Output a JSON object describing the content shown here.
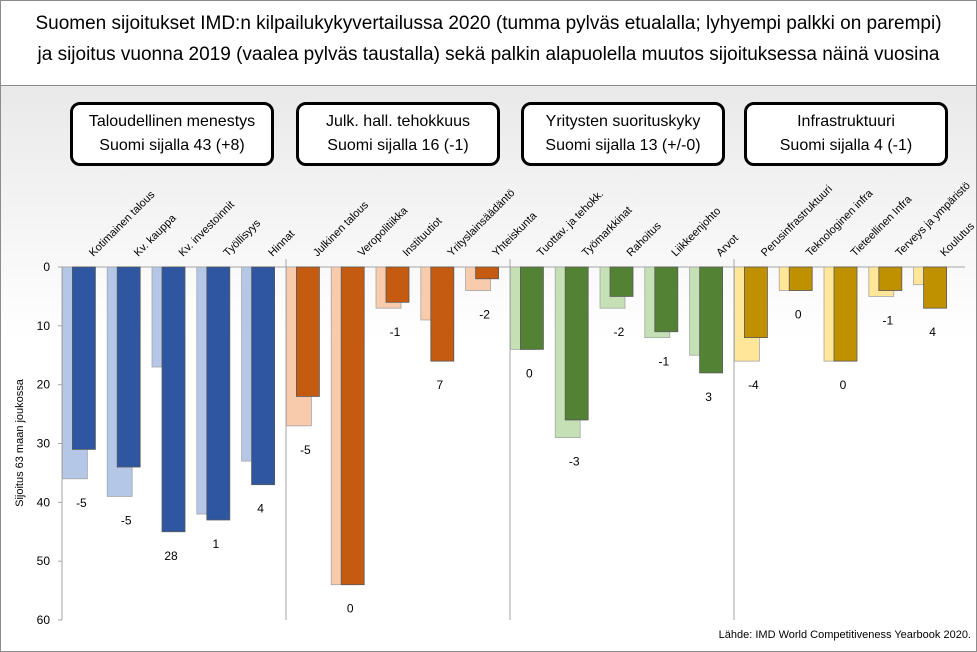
{
  "title": {
    "line1": "Suomen sijoitukset IMD:n kilpailukykyvertailussa 2020 (tumma pylväs etualalla; lyhyempi palkki on parempi)",
    "line2": "ja sijoitus vuonna 2019 (vaalea pylväs taustalla) sekä palkin alapuolella muutos sijoituksessa näinä vuosina"
  },
  "source": "Lähde: IMD World Competitiveness Yearbook 2020.",
  "colors": {
    "group1_dark": "#2e56a1",
    "group1_light": "#b4c7e7",
    "group1_border": "#2f5597",
    "group2_dark": "#c55a11",
    "group2_light": "#f8cbad",
    "group2_border": "#c55a11",
    "group3_dark": "#548235",
    "group3_light": "#c5e0b4",
    "group3_border": "#548235",
    "group4_dark": "#bf9000",
    "group4_light": "#ffe699",
    "group4_border": "#bf9000"
  },
  "chart_data": {
    "type": "bar",
    "ylabel": "Sijoitus 63 maan joukossa",
    "ylim": [
      0,
      60
    ],
    "yticks": [
      0,
      10,
      20,
      30,
      40,
      50,
      60
    ],
    "y_inverted": true,
    "series": [
      {
        "name": "2020",
        "style": "dark, front"
      },
      {
        "name": "2019",
        "style": "light, back"
      }
    ],
    "groups": [
      {
        "name": "Taloudellinen menestys",
        "box_line1": "Taloudellinen menestys",
        "box_line2": "Suomi sijalla 43 (+8)",
        "color_key": "group1",
        "categories": [
          {
            "label": "Kotimainen talous",
            "rank2020": 31,
            "rank2019": 36,
            "change": "-5"
          },
          {
            "label": "Kv. kauppa",
            "rank2020": 34,
            "rank2019": 39,
            "change": "-5"
          },
          {
            "label": "Kv. investoinnit",
            "rank2020": 45,
            "rank2019": 17,
            "change": "28"
          },
          {
            "label": "Työllisyys",
            "rank2020": 43,
            "rank2019": 42,
            "change": "1"
          },
          {
            "label": "Hinnat",
            "rank2020": 37,
            "rank2019": 33,
            "change": "4"
          }
        ]
      },
      {
        "name": "Julk. hall. tehokkuus",
        "box_line1": "Julk. hall. tehokkuus",
        "box_line2": "Suomi sijalla 16 (-1)",
        "color_key": "group2",
        "categories": [
          {
            "label": "Julkinen talous",
            "rank2020": 22,
            "rank2019": 27,
            "change": "-5"
          },
          {
            "label": "Veropolitiikka",
            "rank2020": 54,
            "rank2019": 54,
            "change": "0"
          },
          {
            "label": "Instituutiot",
            "rank2020": 6,
            "rank2019": 7,
            "change": "-1"
          },
          {
            "label": "Yrityslainsäädäntö",
            "rank2020": 16,
            "rank2019": 9,
            "change": "7"
          },
          {
            "label": "Yhteiskunta",
            "rank2020": 2,
            "rank2019": 4,
            "change": "-2"
          }
        ]
      },
      {
        "name": "Yritysten suorituskyky",
        "box_line1": "Yritysten suorituskyky",
        "box_line2": "Suomi sijalla 13 (+/-0)",
        "color_key": "group3",
        "categories": [
          {
            "label": "Tuottav. ja tehokk.",
            "rank2020": 14,
            "rank2019": 14,
            "change": "0"
          },
          {
            "label": "Työmarkkinat",
            "rank2020": 26,
            "rank2019": 29,
            "change": "-3"
          },
          {
            "label": "Rahoitus",
            "rank2020": 5,
            "rank2019": 7,
            "change": "-2"
          },
          {
            "label": "Liikkeenjohto",
            "rank2020": 11,
            "rank2019": 12,
            "change": "-1"
          },
          {
            "label": "Arvot",
            "rank2020": 18,
            "rank2019": 15,
            "change": "3"
          }
        ]
      },
      {
        "name": "Infrastruktuuri",
        "box_line1": "Infrastruktuuri",
        "box_line2": "Suomi sijalla 4 (-1)",
        "color_key": "group4",
        "categories": [
          {
            "label": "Perusinfrastruktuuri",
            "rank2020": 12,
            "rank2019": 16,
            "change": "-4"
          },
          {
            "label": "Teknologinen infra",
            "rank2020": 4,
            "rank2019": 4,
            "change": "0"
          },
          {
            "label": "Tieteellinen Infra",
            "rank2020": 16,
            "rank2019": 16,
            "change": "0"
          },
          {
            "label": "Terveys ja ympäristö",
            "rank2020": 4,
            "rank2019": 5,
            "change": "-1"
          },
          {
            "label": "Koulutus",
            "rank2020": 7,
            "rank2019": 3,
            "change": "4"
          }
        ]
      }
    ]
  }
}
